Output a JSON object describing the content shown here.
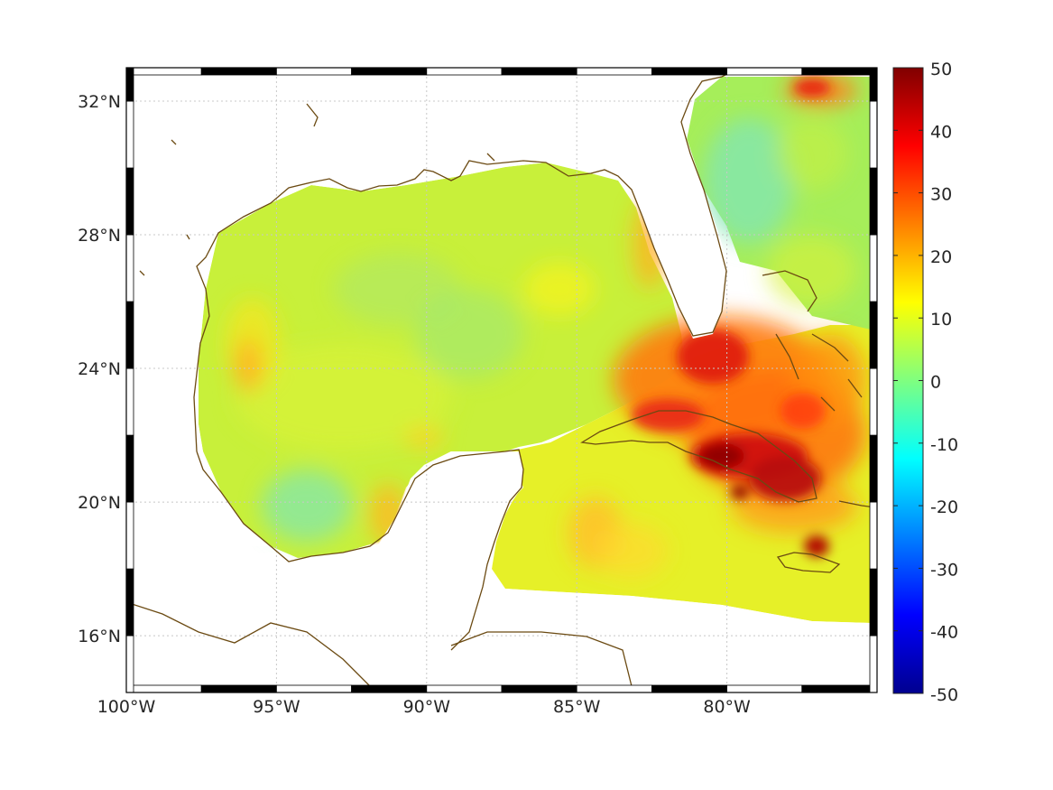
{
  "map": {
    "lon_range": [
      -100,
      -75
    ],
    "lat_range": [
      14.3,
      33
    ],
    "lon_ticks": [
      {
        "value": -100,
        "label": "100°W"
      },
      {
        "value": -95,
        "label": "95°W"
      },
      {
        "value": -90,
        "label": "90°W"
      },
      {
        "value": -85,
        "label": "85°W"
      },
      {
        "value": -80,
        "label": "80°W"
      }
    ],
    "lat_ticks": [
      {
        "value": 16,
        "label": "16°N"
      },
      {
        "value": 20,
        "label": "20°N"
      },
      {
        "value": 24,
        "label": "24°N"
      },
      {
        "value": 28,
        "label": "28°N"
      },
      {
        "value": 32,
        "label": "32°N"
      }
    ],
    "grid": true,
    "coastline_color": "#6b4a12",
    "land_color": "#ffffff"
  },
  "colorbar": {
    "min": -50,
    "max": 50,
    "colormap": "jet",
    "ticks": [
      "50",
      "40",
      "30",
      "20",
      "10",
      "0",
      "-10",
      "-20",
      "-30",
      "-40",
      "-50"
    ]
  }
}
